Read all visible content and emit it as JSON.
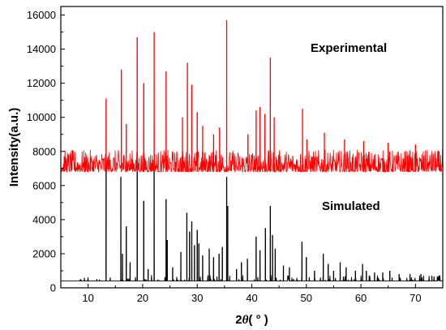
{
  "chart_data": {
    "type": "line",
    "title": "",
    "xlabel": "2θ( ° )",
    "xlabel_parts": {
      "prefix": "2",
      "symbol": "θ",
      "suffix": "( ° )"
    },
    "ylabel": "Intensity(a.u.)",
    "xlim": [
      5,
      75
    ],
    "ylim": [
      0,
      16500
    ],
    "x_ticks": [
      10,
      20,
      30,
      40,
      50,
      60,
      70
    ],
    "y_ticks": [
      0,
      2000,
      4000,
      6000,
      8000,
      10000,
      12000,
      14000,
      16000
    ],
    "grid": false,
    "legend": "none",
    "annotations": [
      "Experimental",
      "Simulated"
    ],
    "series": [
      {
        "name": "Experimental",
        "color": "#ff0000",
        "baseline": 6800,
        "noise_top": 8100,
        "peaks": [
          [
            13.3,
            11100
          ],
          [
            16.1,
            12800
          ],
          [
            17.0,
            9600
          ],
          [
            19.0,
            14700
          ],
          [
            20.2,
            12000
          ],
          [
            22.1,
            15000
          ],
          [
            24.3,
            12700
          ],
          [
            27.3,
            10000
          ],
          [
            28.2,
            13200
          ],
          [
            29.0,
            11900
          ],
          [
            30.0,
            10300
          ],
          [
            31.0,
            9500
          ],
          [
            33.0,
            9000
          ],
          [
            34.1,
            9400
          ],
          [
            35.4,
            15700
          ],
          [
            39.3,
            9000
          ],
          [
            40.8,
            10400
          ],
          [
            41.5,
            10600
          ],
          [
            42.4,
            10200
          ],
          [
            43.4,
            13500
          ],
          [
            44.1,
            10000
          ],
          [
            49.3,
            10500
          ],
          [
            50.1,
            8700
          ],
          [
            53.3,
            9100
          ],
          [
            57.0,
            8700
          ],
          [
            60.5,
            8600
          ],
          [
            65.0,
            8500
          ],
          [
            70.0,
            8400
          ]
        ]
      },
      {
        "name": "Simulated",
        "color": "#000000",
        "baseline": 400,
        "peaks": [
          [
            13.3,
            6900
          ],
          [
            16.0,
            6500
          ],
          [
            16.3,
            2000
          ],
          [
            17.0,
            3600
          ],
          [
            17.7,
            1500
          ],
          [
            19.0,
            7000
          ],
          [
            20.2,
            5100
          ],
          [
            21.0,
            1100
          ],
          [
            22.1,
            7000
          ],
          [
            24.3,
            5200
          ],
          [
            24.5,
            2800
          ],
          [
            25.5,
            1200
          ],
          [
            27.0,
            2100
          ],
          [
            28.1,
            4400
          ],
          [
            28.6,
            3300
          ],
          [
            29.0,
            3900
          ],
          [
            29.5,
            2500
          ],
          [
            30.0,
            3400
          ],
          [
            30.3,
            2600
          ],
          [
            31.0,
            1900
          ],
          [
            32.2,
            2300
          ],
          [
            33.0,
            1800
          ],
          [
            34.0,
            2000
          ],
          [
            34.6,
            2400
          ],
          [
            35.4,
            6500
          ],
          [
            35.6,
            4800
          ],
          [
            37.2,
            1100
          ],
          [
            38.1,
            1500
          ],
          [
            39.2,
            1700
          ],
          [
            40.8,
            3000
          ],
          [
            41.5,
            2200
          ],
          [
            42.5,
            3500
          ],
          [
            43.4,
            4800
          ],
          [
            43.8,
            3100
          ],
          [
            44.3,
            2300
          ],
          [
            45.8,
            1300
          ],
          [
            46.9,
            1200
          ],
          [
            49.2,
            2700
          ],
          [
            50.0,
            1800
          ],
          [
            51.5,
            1000
          ],
          [
            53.1,
            2000
          ],
          [
            54.0,
            1400
          ],
          [
            55.0,
            1000
          ],
          [
            56.2,
            1500
          ],
          [
            57.3,
            1200
          ],
          [
            59.0,
            1000
          ],
          [
            60.3,
            1400
          ],
          [
            61.0,
            1000
          ],
          [
            62.5,
            900
          ],
          [
            64.0,
            900
          ],
          [
            65.3,
            1000
          ],
          [
            67.0,
            800
          ],
          [
            69.0,
            800
          ],
          [
            71.0,
            800
          ],
          [
            73.0,
            700
          ]
        ]
      }
    ]
  }
}
